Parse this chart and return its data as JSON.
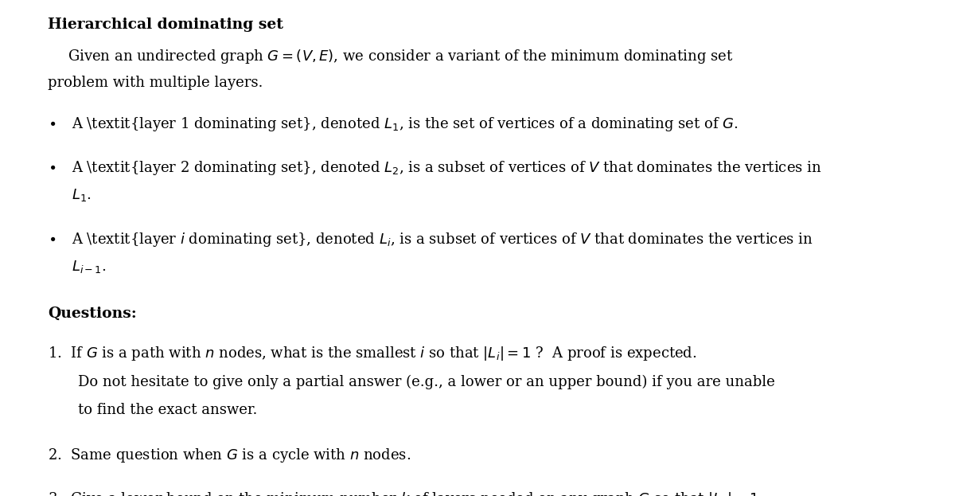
{
  "bg_color": "#ffffff",
  "figsize": [
    12.0,
    6.23
  ],
  "dpi": 100,
  "fs": 13.0,
  "fs_bold": 13.5
}
